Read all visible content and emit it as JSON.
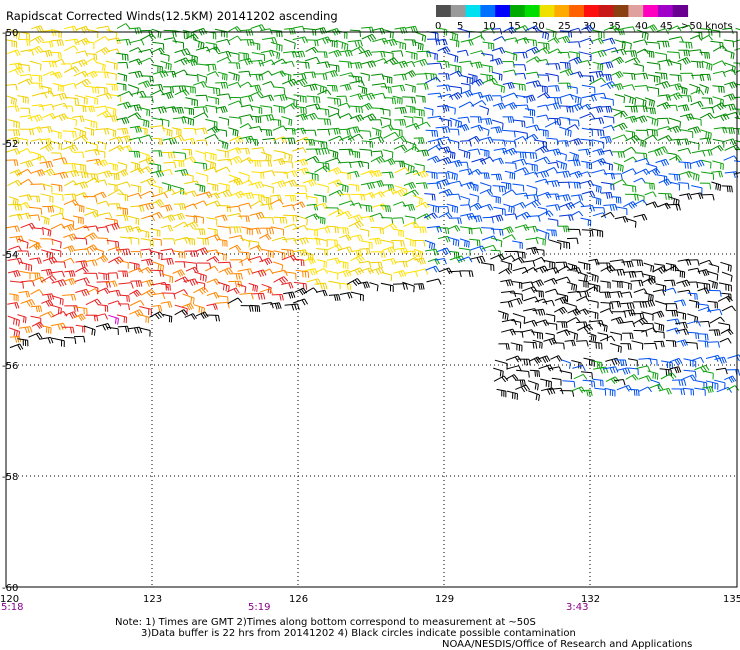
{
  "title": "Rapidscat Corrected Winds(12.5KM) 20141202 ascending",
  "legend": {
    "colors": [
      "#505050",
      "#9a9a9a",
      "#00e0f0",
      "#0070ff",
      "#0000ff",
      "#00aa00",
      "#00dd00",
      "#f0e000",
      "#ffaa00",
      "#ff6000",
      "#ff1010",
      "#c81818",
      "#8a4010",
      "#e0a0a0",
      "#ff00c0",
      "#a000c8",
      "#6a0090"
    ],
    "labels": [
      "0",
      "5",
      "10",
      "15",
      "20",
      "25",
      "30",
      "35",
      "40",
      "45",
      ">50 knots"
    ]
  },
  "axes": {
    "lon_ticks": [
      "120",
      "123",
      "126",
      "129",
      "132",
      "135"
    ],
    "lat_ticks": [
      "-50",
      "-52",
      "-54",
      "-56",
      "-58",
      "-60"
    ]
  },
  "times": [
    "5:18",
    "5:19",
    "3:43"
  ],
  "notes": {
    "line1": "Note: 1) Times are GMT 2)Times along bottom correspond to measurement at ~50S",
    "line2": "3)Data buffer is 22 hrs from 20141202 4) Black circles indicate possible contamination",
    "credit": "NOAA/NESDIS/Office of Research and Applications"
  },
  "palette": {
    "gold": "#f0d000",
    "yellow": "#ffe000",
    "orange": "#ff8800",
    "red": "#e82020",
    "magenta": "#d000d0",
    "green": "#10a010",
    "dkgreen": "#008800",
    "blue": "#0050f0",
    "dkblue": "#0030d0",
    "black": "#000000"
  }
}
